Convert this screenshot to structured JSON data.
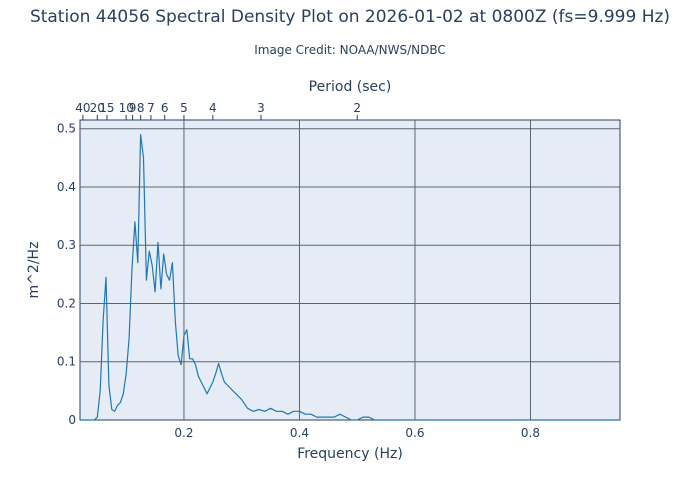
{
  "chart_data": {
    "type": "line",
    "title": "Station 44056 Spectral Density Plot  on 2026-01-02 at 0800Z (fs=9.999 Hz)",
    "subtitle": "Image Credit: NOAA/NWS/NDBC",
    "xlabel": "Frequency (Hz)",
    "ylabel": "m^2/Hz",
    "top_axis_label": "Period (sec)",
    "xlim": [
      0.02,
      0.955
    ],
    "ylim": [
      0,
      0.515
    ],
    "x_ticks": [
      0.2,
      0.4,
      0.6,
      0.8
    ],
    "x_tick_labels": [
      "0.2",
      "0.4",
      "0.6",
      "0.8"
    ],
    "y_ticks": [
      0,
      0.1,
      0.2,
      0.3,
      0.4,
      0.5
    ],
    "y_tick_labels": [
      "0",
      "0.1",
      "0.2",
      "0.3",
      "0.4",
      "0.5"
    ],
    "period_ticks": [
      40,
      20,
      15,
      10,
      9,
      8,
      7,
      6,
      5,
      4,
      3,
      2
    ],
    "period_tick_labels": [
      "40",
      "20",
      "15",
      "10",
      "9",
      "8",
      "7",
      "6",
      "5",
      "4",
      "3",
      "2"
    ],
    "grid": true,
    "colors": {
      "line": "#1f77b4",
      "plot_background": "#e5ecf6",
      "grid": "#5b6470",
      "text": "#2a3f5f"
    },
    "series": [
      {
        "x": [
          0.02,
          0.025,
          0.03,
          0.035,
          0.04,
          0.045,
          0.05,
          0.055,
          0.06,
          0.065,
          0.07,
          0.075,
          0.08,
          0.085,
          0.09,
          0.095,
          0.1,
          0.105,
          0.11,
          0.115,
          0.12,
          0.125,
          0.13,
          0.135,
          0.14,
          0.145,
          0.15,
          0.155,
          0.16,
          0.165,
          0.17,
          0.175,
          0.18,
          0.185,
          0.19,
          0.195,
          0.2,
          0.205,
          0.21,
          0.215,
          0.22,
          0.225,
          0.23,
          0.235,
          0.24,
          0.245,
          0.25,
          0.255,
          0.26,
          0.265,
          0.27,
          0.275,
          0.28,
          0.285,
          0.29,
          0.3,
          0.31,
          0.32,
          0.33,
          0.34,
          0.35,
          0.36,
          0.37,
          0.38,
          0.39,
          0.4,
          0.41,
          0.42,
          0.43,
          0.44,
          0.45,
          0.46,
          0.47,
          0.48,
          0.49,
          0.5,
          0.51,
          0.52,
          0.53,
          0.54,
          0.55,
          0.56,
          0.57,
          0.58,
          0.6,
          0.65,
          0.7,
          0.75,
          0.8,
          0.85,
          0.9,
          0.955
        ],
        "values": [
          0,
          0,
          0,
          0,
          0,
          0,
          0.005,
          0.05,
          0.17,
          0.245,
          0.06,
          0.018,
          0.015,
          0.025,
          0.03,
          0.045,
          0.08,
          0.14,
          0.26,
          0.34,
          0.27,
          0.49,
          0.45,
          0.24,
          0.29,
          0.265,
          0.22,
          0.305,
          0.225,
          0.285,
          0.25,
          0.24,
          0.27,
          0.17,
          0.11,
          0.095,
          0.145,
          0.155,
          0.105,
          0.105,
          0.095,
          0.075,
          0.065,
          0.055,
          0.045,
          0.055,
          0.065,
          0.08,
          0.097,
          0.08,
          0.065,
          0.06,
          0.055,
          0.05,
          0.045,
          0.035,
          0.02,
          0.015,
          0.018,
          0.015,
          0.02,
          0.015,
          0.015,
          0.01,
          0.015,
          0.015,
          0.01,
          0.01,
          0.005,
          0.005,
          0.005,
          0.005,
          0.01,
          0.005,
          0,
          0,
          0.005,
          0.005,
          0,
          0,
          0,
          0,
          0,
          0,
          0,
          0,
          0,
          0,
          0,
          0,
          0,
          0
        ]
      }
    ]
  }
}
